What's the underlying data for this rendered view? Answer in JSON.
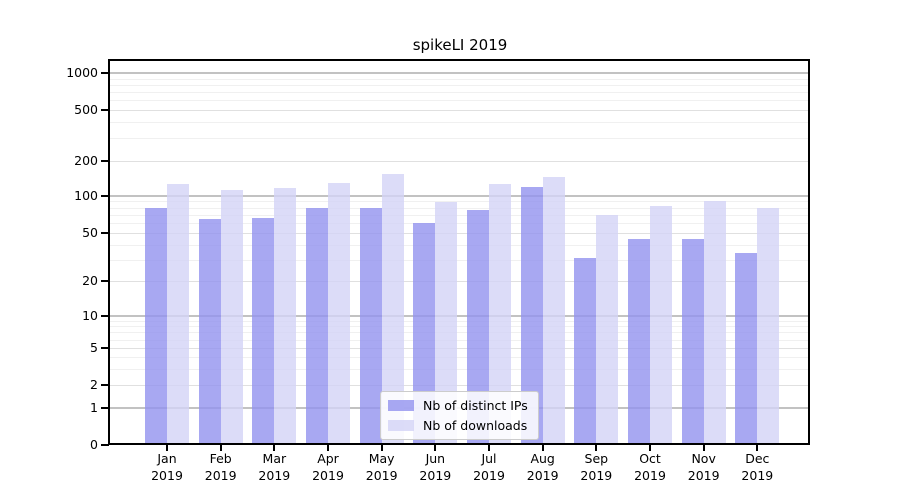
{
  "chart_data": {
    "type": "bar",
    "title": "spikeLI 2019",
    "categories": [
      "Jan 2019",
      "Feb 2019",
      "Mar 2019",
      "Apr 2019",
      "May 2019",
      "Jun 2019",
      "Jul 2019",
      "Aug 2019",
      "Sep 2019",
      "Oct 2019",
      "Nov 2019",
      "Dec 2019"
    ],
    "months": [
      "Jan",
      "Feb",
      "Mar",
      "Apr",
      "May",
      "Jun",
      "Jul",
      "Aug",
      "Sep",
      "Oct",
      "Nov",
      "Dec"
    ],
    "year": "2019",
    "series": [
      {
        "name": "Nb of distinct IPs",
        "hex": "#a8a8f2",
        "fill": "rgba(146,146,239,0.8)",
        "values": [
          79,
          65,
          66,
          79,
          79,
          60,
          77,
          118,
          31,
          45,
          45,
          34
        ]
      },
      {
        "name": "Nb of downloads",
        "hex": "#dbdbf8",
        "fill": "rgba(211,211,246,0.8)",
        "values": [
          126,
          111,
          116,
          128,
          154,
          89,
          127,
          146,
          70,
          82,
          90,
          79
        ]
      }
    ],
    "xlabel": "",
    "ylabel": "",
    "yscale": "symlog",
    "yticks": [
      0,
      1,
      2,
      5,
      10,
      20,
      50,
      100,
      200,
      500,
      1000
    ],
    "ylim": [
      0,
      1250
    ],
    "grid": "both",
    "legend_position": "lower center",
    "grid_colors": {
      "major": "#c2c2c2",
      "labeled": "#e0e0e0",
      "minor": "#f0f0f0"
    }
  }
}
